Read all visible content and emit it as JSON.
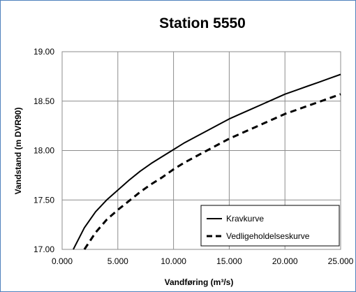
{
  "chart_data": {
    "type": "line",
    "title": "Station 5550",
    "xlabel": "Vandføring (m³/s)",
    "ylabel": "Vandstand (m DVR90)",
    "xlim": [
      0,
      25
    ],
    "ylim": [
      17.0,
      19.0
    ],
    "x_ticks": [
      0,
      5,
      10,
      15,
      20,
      25
    ],
    "x_tick_labels": [
      "0.000",
      "5.000",
      "10.000",
      "15.000",
      "20.000",
      "25.000"
    ],
    "y_ticks": [
      17.0,
      17.5,
      18.0,
      18.5,
      19.0
    ],
    "y_tick_labels": [
      "17.00",
      "17.50",
      "18.00",
      "18.50",
      "19.00"
    ],
    "grid": true,
    "legend_position": "bottom-right",
    "series": [
      {
        "name": "Kravkurve",
        "style": "solid",
        "color": "#000000",
        "x": [
          1.0,
          2.0,
          3.0,
          4.0,
          5.0,
          6.0,
          7.0,
          8.0,
          9.0,
          10.0,
          11.0,
          12.0,
          13.0,
          14.0,
          15.0,
          16.0,
          17.0,
          18.0,
          19.0,
          20.0,
          21.0,
          22.0,
          23.0,
          24.0,
          25.0
        ],
        "y": [
          17.0,
          17.22,
          17.38,
          17.5,
          17.6,
          17.7,
          17.79,
          17.87,
          17.94,
          18.01,
          18.08,
          18.14,
          18.2,
          18.26,
          18.32,
          18.37,
          18.42,
          18.47,
          18.52,
          18.57,
          18.61,
          18.65,
          18.69,
          18.73,
          18.77
        ]
      },
      {
        "name": "Vedligeholdelseskurve",
        "style": "dashed",
        "color": "#000000",
        "x": [
          2.0,
          3.0,
          4.0,
          5.0,
          6.0,
          7.0,
          8.0,
          9.0,
          10.0,
          11.0,
          12.0,
          13.0,
          14.0,
          15.0,
          16.0,
          17.0,
          18.0,
          19.0,
          20.0,
          21.0,
          22.0,
          23.0,
          24.0,
          25.0
        ],
        "y": [
          17.0,
          17.17,
          17.3,
          17.4,
          17.49,
          17.58,
          17.66,
          17.73,
          17.81,
          17.88,
          17.94,
          18.0,
          18.06,
          18.12,
          18.17,
          18.22,
          18.27,
          18.32,
          18.37,
          18.41,
          18.45,
          18.49,
          18.53,
          18.57
        ]
      }
    ]
  }
}
